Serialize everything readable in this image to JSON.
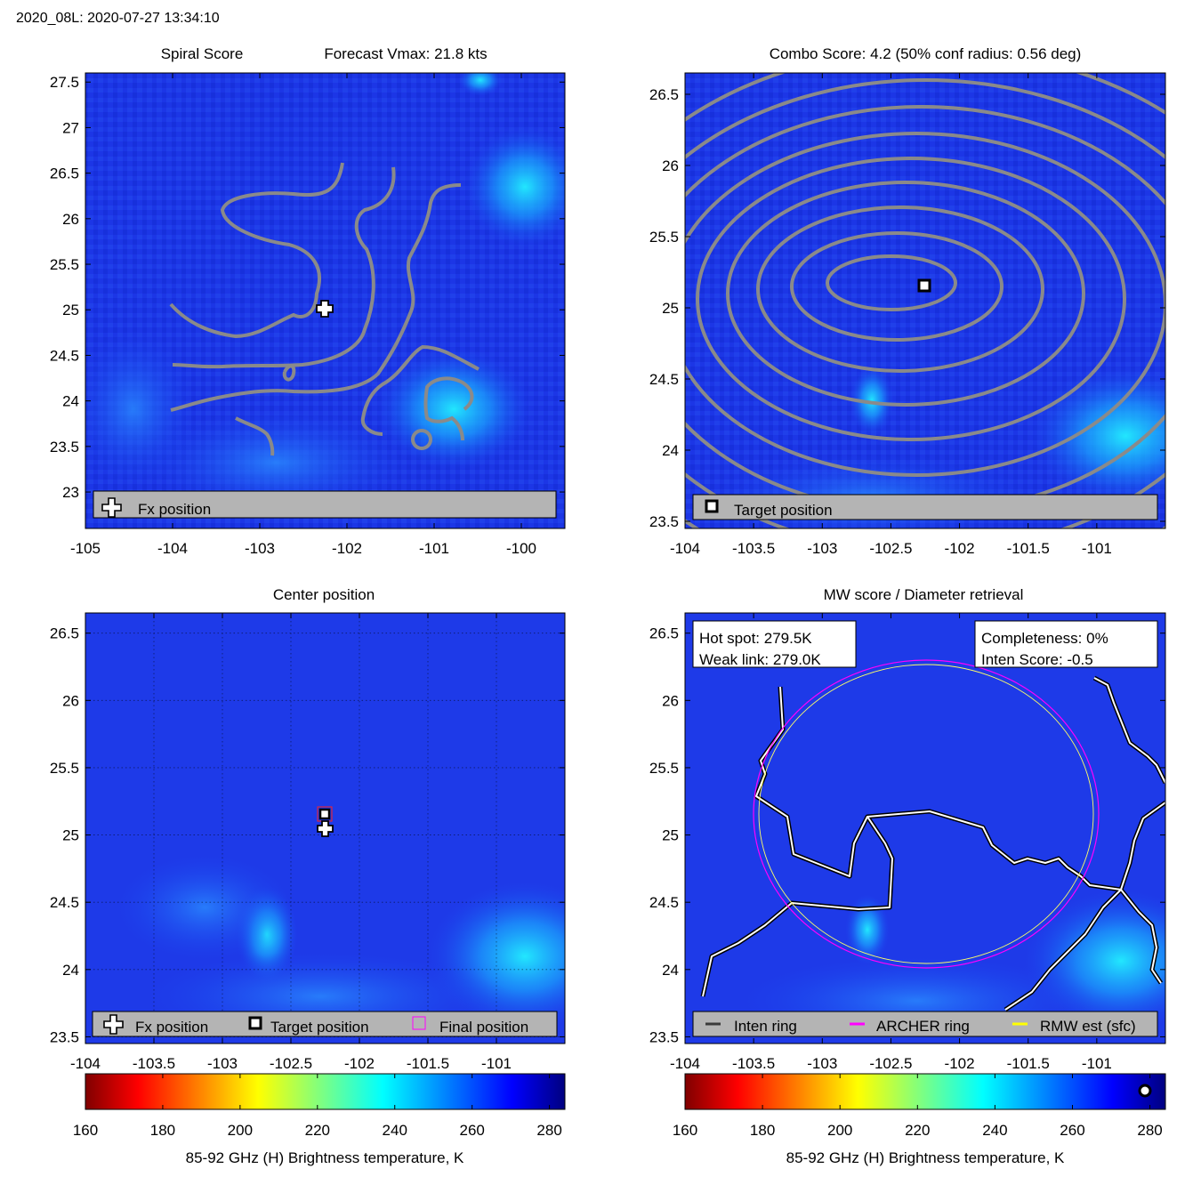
{
  "header": "2020_08L: 2020-07-27 13:34:10",
  "colors": {
    "bg_blue": "#1a2fe0",
    "contour": "#8a8a8a",
    "legend_bg": "#b4b4b4",
    "archer_ring": "#ff00ff",
    "rmw_ring": "#ffff00",
    "inten_ring": "#3a3a3a"
  },
  "panels": {
    "spiral": {
      "title_left": "Spiral Score",
      "title_right": "Forecast Vmax: 21.8 kts",
      "legend": [
        "Fx position"
      ]
    },
    "combo": {
      "title": "Combo Score: 4.2  (50% conf radius: 0.56 deg)",
      "legend": [
        "Target position"
      ]
    },
    "center": {
      "title": "Center position",
      "legend": [
        "Fx position",
        "Target position",
        "Final position"
      ]
    },
    "mw": {
      "title": "MW score / Diameter retrieval",
      "box_left": [
        "Hot spot: 279.5K",
        "Weak link: 279.0K"
      ],
      "box_right": [
        "Completeness: 0%",
        "Inten Score: -0.5"
      ],
      "legend": [
        "Inten ring",
        "ARCHER ring",
        "RMW est (sfc)"
      ]
    }
  },
  "colorbar": {
    "label": "85-92 GHz (H) Brightness temperature, K",
    "ticks": [
      "160",
      "180",
      "200",
      "220",
      "240",
      "260",
      "280"
    ]
  },
  "chart_data": [
    {
      "type": "heatmap",
      "panel": "Spiral Score",
      "xticks": [
        "-105",
        "-104",
        "-103",
        "-102",
        "-101",
        "-100"
      ],
      "yticks": [
        "27.5",
        "27",
        "26.5",
        "26",
        "25.5",
        "25",
        "24.5",
        "24",
        "23.5",
        "23"
      ],
      "xlim": [
        -105.0,
        -99.5
      ],
      "ylim": [
        22.6,
        27.6
      ],
      "fx_position": {
        "lon": -102.2,
        "lat": 25.05
      },
      "forecast_vmax_kts": 21.8
    },
    {
      "type": "heatmap",
      "panel": "Combo Score",
      "xticks": [
        "-104",
        "-103.5",
        "-103",
        "-102.5",
        "-102",
        "-101.5",
        "-101"
      ],
      "yticks": [
        "26.5",
        "26",
        "25.5",
        "25",
        "24.5",
        "24",
        "23.5"
      ],
      "xlim": [
        -104.0,
        -100.5
      ],
      "ylim": [
        23.45,
        26.65
      ],
      "target_position": {
        "lon": -102.25,
        "lat": 25.15
      },
      "combo_score": 4.2,
      "conf_radius_50pct_deg": 0.56
    },
    {
      "type": "heatmap",
      "panel": "Center position",
      "xticks": [
        "-104",
        "-103.5",
        "-103",
        "-102.5",
        "-102",
        "-101.5",
        "-101"
      ],
      "yticks": [
        "26.5",
        "26",
        "25.5",
        "25",
        "24.5",
        "24",
        "23.5"
      ],
      "xlim": [
        -104.0,
        -100.5
      ],
      "ylim": [
        23.45,
        26.65
      ],
      "fx_position": {
        "lon": -102.25,
        "lat": 25.05
      },
      "target_position": {
        "lon": -102.25,
        "lat": 25.15
      },
      "final_position": {
        "lon": -102.25,
        "lat": 25.15
      }
    },
    {
      "type": "heatmap",
      "panel": "MW score / Diameter retrieval",
      "xticks": [
        "-104",
        "-103.5",
        "-103",
        "-102.5",
        "-102",
        "-101.5",
        "-101"
      ],
      "yticks": [
        "26.5",
        "26",
        "25.5",
        "25",
        "24.5",
        "24",
        "23.5"
      ],
      "xlim": [
        -104.0,
        -100.5
      ],
      "ylim": [
        23.45,
        26.65
      ],
      "ring_center": {
        "lon": -102.25,
        "lat": 25.15
      },
      "archer_ring_radius_deg": 1.23,
      "rmw_ring_radius_deg": 1.2,
      "hot_spot_K": 279.5,
      "weak_link_K": 279.0,
      "completeness_pct": 0,
      "inten_score": -0.5
    }
  ]
}
